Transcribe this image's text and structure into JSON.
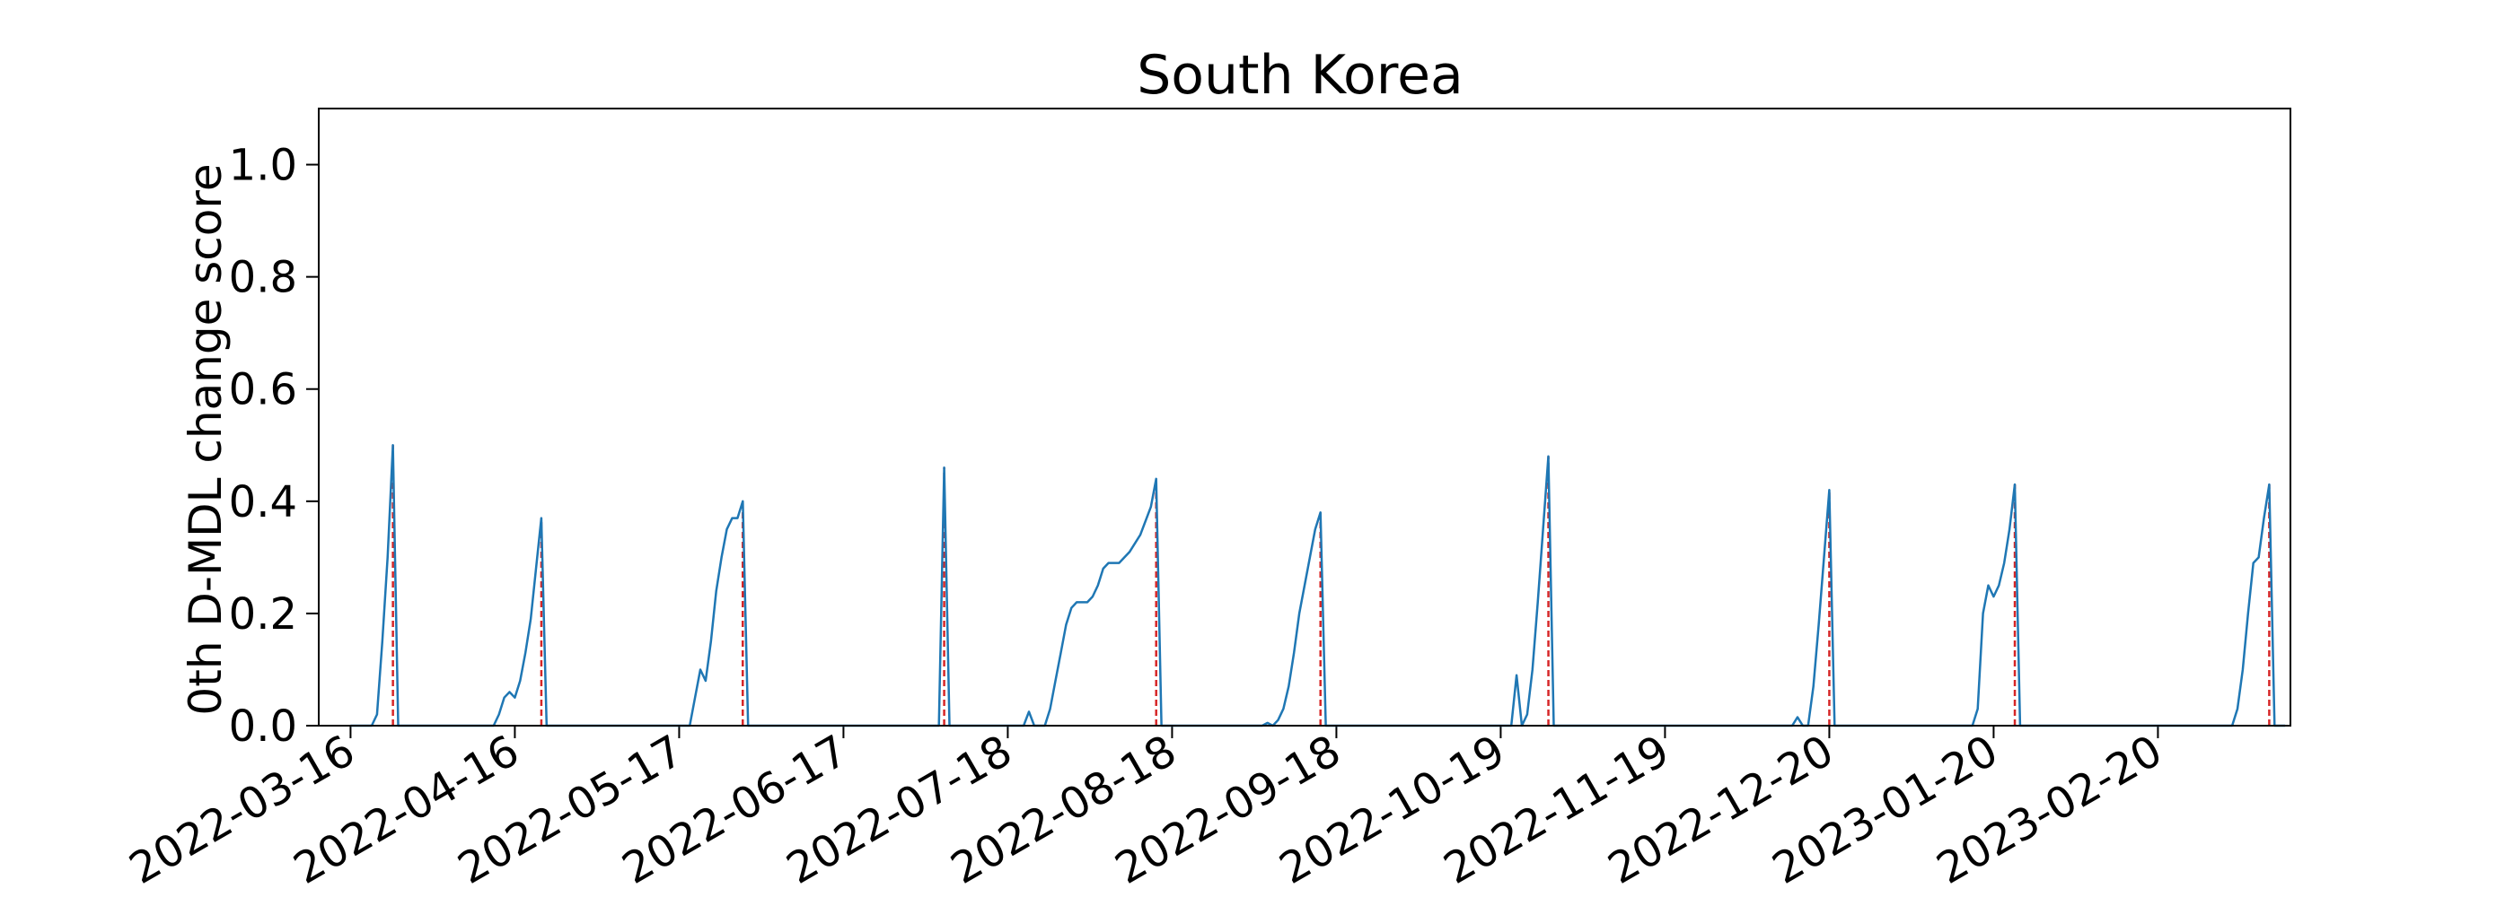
{
  "chart_data": {
    "type": "line",
    "title": "South Korea",
    "xlabel": "",
    "ylabel": "0th D-MDL change score",
    "xlim": [
      "2022-03-10",
      "2023-03-17"
    ],
    "ylim": [
      0.0,
      1.1
    ],
    "x_ticks": [
      "2022-03-16",
      "2022-04-16",
      "2022-05-17",
      "2022-06-17",
      "2022-07-18",
      "2022-08-18",
      "2022-09-18",
      "2022-10-19",
      "2022-11-19",
      "2022-12-20",
      "2023-01-20",
      "2023-02-20"
    ],
    "y_ticks": [
      0.0,
      0.2,
      0.4,
      0.6,
      0.8,
      1.0
    ],
    "y_tick_labels": [
      "0.0",
      "0.2",
      "0.4",
      "0.6",
      "0.8",
      "1.0"
    ],
    "grid": false,
    "colors": {
      "line": "#1f77b4",
      "marker": "#d62728",
      "axes": "#000000"
    },
    "series": [
      {
        "style": "solid-line",
        "points": [
          [
            "2022-03-16",
            0.0
          ],
          [
            "2022-03-20",
            0.0
          ],
          [
            "2022-03-21",
            0.02
          ],
          [
            "2022-03-22",
            0.15
          ],
          [
            "2022-03-23",
            0.3
          ],
          [
            "2022-03-24",
            0.5
          ],
          [
            "2022-03-25",
            0.0
          ],
          [
            "2022-04-12",
            0.0
          ],
          [
            "2022-04-13",
            0.02
          ],
          [
            "2022-04-14",
            0.05
          ],
          [
            "2022-04-15",
            0.06
          ],
          [
            "2022-04-16",
            0.05
          ],
          [
            "2022-04-17",
            0.08
          ],
          [
            "2022-04-18",
            0.13
          ],
          [
            "2022-04-19",
            0.19
          ],
          [
            "2022-04-20",
            0.28
          ],
          [
            "2022-04-21",
            0.37
          ],
          [
            "2022-04-22",
            0.0
          ],
          [
            "2022-05-19",
            0.0
          ],
          [
            "2022-05-20",
            0.05
          ],
          [
            "2022-05-21",
            0.1
          ],
          [
            "2022-05-22",
            0.08
          ],
          [
            "2022-05-23",
            0.15
          ],
          [
            "2022-05-24",
            0.24
          ],
          [
            "2022-05-25",
            0.3
          ],
          [
            "2022-05-26",
            0.35
          ],
          [
            "2022-05-27",
            0.37
          ],
          [
            "2022-05-28",
            0.37
          ],
          [
            "2022-05-29",
            0.4
          ],
          [
            "2022-05-30",
            0.0
          ],
          [
            "2022-07-05",
            0.0
          ],
          [
            "2022-07-06",
            0.46
          ],
          [
            "2022-07-07",
            0.0
          ],
          [
            "2022-07-21",
            0.0
          ],
          [
            "2022-07-22",
            0.025
          ],
          [
            "2022-07-23",
            0.0
          ],
          [
            "2022-07-24",
            0.0
          ],
          [
            "2022-07-25",
            0.0
          ],
          [
            "2022-07-26",
            0.03
          ],
          [
            "2022-07-27",
            0.08
          ],
          [
            "2022-07-28",
            0.13
          ],
          [
            "2022-07-29",
            0.18
          ],
          [
            "2022-07-30",
            0.21
          ],
          [
            "2022-07-31",
            0.22
          ],
          [
            "2022-08-02",
            0.22
          ],
          [
            "2022-08-03",
            0.23
          ],
          [
            "2022-08-04",
            0.25
          ],
          [
            "2022-08-05",
            0.28
          ],
          [
            "2022-08-06",
            0.29
          ],
          [
            "2022-08-08",
            0.29
          ],
          [
            "2022-08-10",
            0.31
          ],
          [
            "2022-08-12",
            0.34
          ],
          [
            "2022-08-14",
            0.39
          ],
          [
            "2022-08-15",
            0.44
          ],
          [
            "2022-08-16",
            0.0
          ],
          [
            "2022-09-04",
            0.0
          ],
          [
            "2022-09-05",
            0.005
          ],
          [
            "2022-09-06",
            0.0
          ],
          [
            "2022-09-07",
            0.01
          ],
          [
            "2022-09-08",
            0.03
          ],
          [
            "2022-09-09",
            0.07
          ],
          [
            "2022-09-10",
            0.13
          ],
          [
            "2022-09-11",
            0.2
          ],
          [
            "2022-09-12",
            0.25
          ],
          [
            "2022-09-13",
            0.3
          ],
          [
            "2022-09-14",
            0.35
          ],
          [
            "2022-09-15",
            0.38
          ],
          [
            "2022-09-16",
            0.0
          ],
          [
            "2022-10-21",
            0.0
          ],
          [
            "2022-10-22",
            0.09
          ],
          [
            "2022-10-23",
            0.0
          ],
          [
            "2022-10-24",
            0.02
          ],
          [
            "2022-10-25",
            0.1
          ],
          [
            "2022-10-26",
            0.22
          ],
          [
            "2022-10-27",
            0.35
          ],
          [
            "2022-10-28",
            0.48
          ],
          [
            "2022-10-29",
            0.0
          ],
          [
            "2022-12-13",
            0.0
          ],
          [
            "2022-12-14",
            0.015
          ],
          [
            "2022-12-15",
            0.0
          ],
          [
            "2022-12-16",
            0.0
          ],
          [
            "2022-12-17",
            0.07
          ],
          [
            "2022-12-18",
            0.18
          ],
          [
            "2022-12-19",
            0.3
          ],
          [
            "2022-12-20",
            0.42
          ],
          [
            "2022-12-21",
            0.0
          ],
          [
            "2023-01-16",
            0.0
          ],
          [
            "2023-01-17",
            0.03
          ],
          [
            "2023-01-18",
            0.2
          ],
          [
            "2023-01-19",
            0.25
          ],
          [
            "2023-01-20",
            0.23
          ],
          [
            "2023-01-21",
            0.25
          ],
          [
            "2023-01-22",
            0.29
          ],
          [
            "2023-01-23",
            0.35
          ],
          [
            "2023-01-24",
            0.43
          ],
          [
            "2023-01-25",
            0.0
          ],
          [
            "2023-03-06",
            0.0
          ],
          [
            "2023-03-07",
            0.03
          ],
          [
            "2023-03-08",
            0.1
          ],
          [
            "2023-03-09",
            0.2
          ],
          [
            "2023-03-10",
            0.29
          ],
          [
            "2023-03-11",
            0.3
          ],
          [
            "2023-03-12",
            0.37
          ],
          [
            "2023-03-13",
            0.43
          ],
          [
            "2023-03-14",
            0.0
          ],
          [
            "2023-03-16",
            0.0
          ]
        ]
      },
      {
        "style": "dashed-vertical-markers",
        "x": [
          "2022-03-24",
          "2022-04-21",
          "2022-05-29",
          "2022-07-06",
          "2022-08-15",
          "2022-09-15",
          "2022-10-28",
          "2022-12-20",
          "2023-01-24",
          "2023-03-13"
        ],
        "y_top": [
          0.5,
          0.37,
          0.4,
          0.46,
          0.44,
          0.38,
          0.48,
          0.42,
          0.43,
          0.43
        ]
      }
    ]
  }
}
